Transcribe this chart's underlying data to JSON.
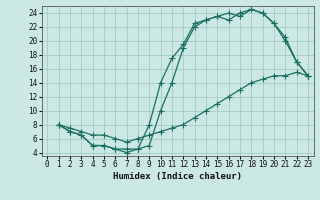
{
  "xlabel": "Humidex (Indice chaleur)",
  "bg_color": "#cce8e4",
  "grid_color": "#aacfcb",
  "line_color": "#1a7060",
  "xlim": [
    -0.5,
    23.5
  ],
  "ylim": [
    3.5,
    25
  ],
  "xticks": [
    0,
    1,
    2,
    3,
    4,
    5,
    6,
    7,
    8,
    9,
    10,
    11,
    12,
    13,
    14,
    15,
    16,
    17,
    18,
    19,
    20,
    21,
    22,
    23
  ],
  "yticks": [
    4,
    6,
    8,
    10,
    12,
    14,
    16,
    18,
    20,
    22,
    24
  ],
  "line1_x": [
    1,
    2,
    3,
    4,
    5,
    6,
    7,
    8,
    9,
    10,
    11,
    12,
    13,
    14,
    15,
    16,
    17,
    18,
    19,
    20,
    21,
    22,
    23
  ],
  "line1_y": [
    8,
    7,
    6.5,
    5,
    5,
    4.5,
    4,
    4.5,
    8,
    14,
    17.5,
    19.5,
    22.5,
    23,
    23.5,
    24,
    23.5,
    24.5,
    24,
    22.5,
    20,
    17,
    15
  ],
  "line2_x": [
    1,
    2,
    3,
    4,
    5,
    6,
    7,
    8,
    9,
    10,
    11,
    12,
    13,
    14,
    15,
    16,
    17,
    18,
    19,
    20,
    21,
    22,
    23
  ],
  "line2_y": [
    8,
    7,
    6.5,
    5,
    5,
    4.5,
    4.5,
    4.5,
    5,
    10,
    14,
    19,
    22,
    23,
    23.5,
    23,
    24,
    24.5,
    24,
    22.5,
    20.5,
    17,
    15
  ],
  "line3_x": [
    1,
    2,
    3,
    4,
    5,
    6,
    7,
    8,
    9,
    10,
    11,
    12,
    13,
    14,
    15,
    16,
    17,
    18,
    19,
    20,
    21,
    22,
    23
  ],
  "line3_y": [
    8,
    7.5,
    7,
    6.5,
    6.5,
    6,
    5.5,
    6,
    6.5,
    7,
    7.5,
    8,
    9,
    10,
    11,
    12,
    13,
    14,
    14.5,
    15,
    15,
    15.5,
    15
  ]
}
